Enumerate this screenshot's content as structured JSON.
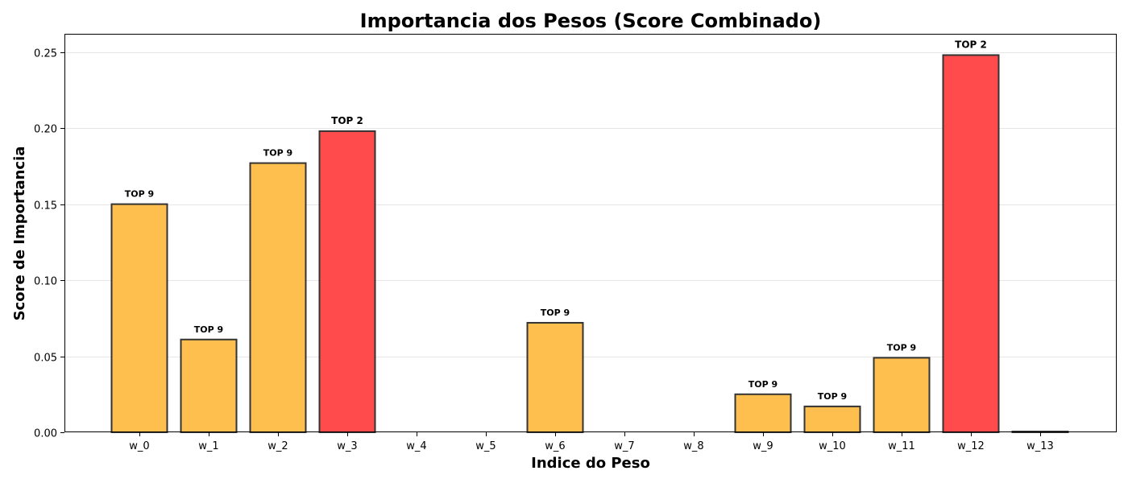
{
  "chart_data": {
    "type": "bar",
    "title": "Importancia dos Pesos (Score Combinado)",
    "xlabel": "Indice do Peso",
    "ylabel": "Score de Importancia",
    "ylim": [
      0,
      0.262
    ],
    "yticks": [
      "0.00",
      "0.05",
      "0.10",
      "0.15",
      "0.20",
      "0.25"
    ],
    "grid": "horizontal",
    "categories": [
      "w_0",
      "w_1",
      "w_2",
      "w_3",
      "w_4",
      "w_5",
      "w_6",
      "w_7",
      "w_8",
      "w_9",
      "w_10",
      "w_11",
      "w_12",
      "w_13"
    ],
    "values": [
      0.15,
      0.061,
      0.177,
      0.198,
      0.0,
      0.0,
      0.072,
      0.0,
      0.0,
      0.025,
      0.017,
      0.049,
      0.248,
      0.0005
    ],
    "labels": [
      "TOP 9",
      "TOP 9",
      "TOP 9",
      "TOP 2",
      "",
      "",
      "TOP 9",
      "",
      "",
      "TOP 9",
      "TOP 9",
      "TOP 9",
      "TOP 2",
      ""
    ],
    "colors": {
      "top9": "#FFBF4F",
      "top2": "#FF4B4B",
      "other": "#FFBF4F",
      "edge": "#333333"
    }
  }
}
